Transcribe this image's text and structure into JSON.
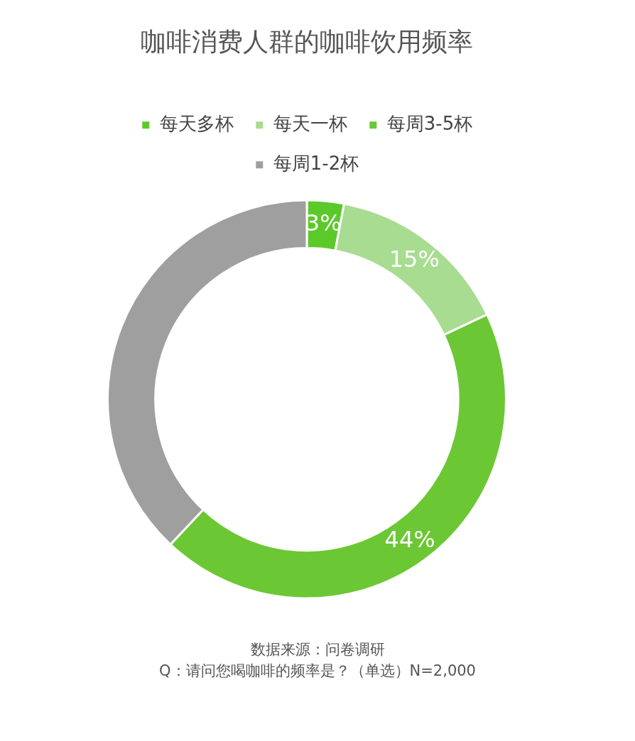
{
  "chart_data": {
    "type": "donut",
    "title": "咖啡消费人群的咖啡饮用频率",
    "categories": [
      "每天多杯",
      "每天一杯",
      "每周3-5杯",
      "每周1-2杯"
    ],
    "values": [
      3,
      15,
      44,
      38
    ],
    "colors": [
      "#5cc92a",
      "#a8dc90",
      "#6cc734",
      "#a09fa0"
    ],
    "value_labels": [
      "3%",
      "15%",
      "44%",
      null
    ],
    "legend": "top",
    "annotations": [
      "数据来源：问卷调研",
      "Q：请问您喝咖啡的频率是？（单选）N=2,000"
    ]
  }
}
